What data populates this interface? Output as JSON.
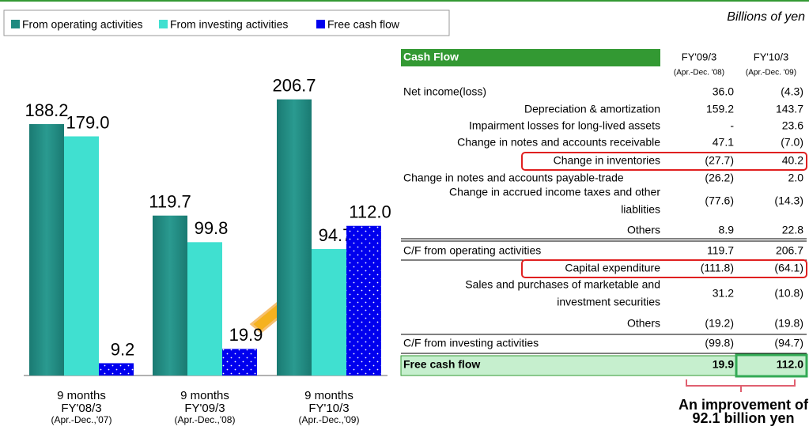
{
  "chart_data": {
    "type": "bar",
    "categories": [
      [
        "9 months",
        "FY'08/3",
        "(Apr.-Dec.,'07)"
      ],
      [
        "9 months",
        "FY'09/3",
        "(Apr.-Dec.,'08)"
      ],
      [
        "9 months",
        "FY'10/3",
        "(Apr.-Dec.,'09)"
      ]
    ],
    "series": [
      {
        "name": "From operating activities",
        "color": "#1f8a80",
        "values": [
          188.2,
          119.7,
          206.7
        ],
        "value_labels": [
          "188.2",
          "119.7",
          "206.7"
        ]
      },
      {
        "name": "From investing activities",
        "color": "#40e0d0",
        "values": [
          179.0,
          99.8,
          94.7
        ],
        "value_labels": [
          "179.0",
          "99.8",
          "94.7"
        ]
      },
      {
        "name": "Free cash flow",
        "color": "#0000ee",
        "values": [
          9.2,
          19.9,
          112.0
        ],
        "value_labels": [
          "9.2",
          "19.9",
          "112.0"
        ]
      }
    ]
  },
  "unit": "Billions of yen",
  "table": {
    "title": "Cash Flow",
    "columns": [
      [
        "FY'09/3",
        "(Apr.-Dec. '08)"
      ],
      [
        "FY'10/3",
        "(Apr.-Dec. '09)"
      ]
    ],
    "rows": [
      {
        "label": "Net income(loss)",
        "values": [
          "36.0",
          "(4.3)"
        ]
      },
      {
        "label": "Depreciation & amortization",
        "values": [
          "159.2",
          "143.7"
        ]
      },
      {
        "label": "Impairment losses for long-lived assets",
        "values": [
          "-",
          "23.6"
        ]
      },
      {
        "label": "Change in notes and accounts receivable",
        "values": [
          "47.1",
          "(7.0)"
        ]
      },
      {
        "label": "Change in inventories",
        "values": [
          "(27.7)",
          "40.2"
        ]
      },
      {
        "label": "Change in notes and accounts payable-trade",
        "values": [
          "(26.2)",
          "2.0"
        ]
      },
      {
        "label": [
          "Change in accrued income taxes and other",
          "liablities"
        ],
        "values": [
          "(77.6)",
          "(14.3)"
        ]
      },
      {
        "label": "Others",
        "values": [
          "8.9",
          "22.8"
        ]
      },
      {
        "label": "C/F from operating activities",
        "values": [
          "119.7",
          "206.7"
        ]
      },
      {
        "label": "Capital expenditure",
        "values": [
          "(111.8)",
          "(64.1)"
        ]
      },
      {
        "label": [
          "Sales and purchases of marketable and",
          "investment securities"
        ],
        "values": [
          "31.2",
          "(10.8)"
        ]
      },
      {
        "label": "Others",
        "values": [
          "(19.2)",
          "(19.8)"
        ]
      },
      {
        "label": "C/F from investing activities",
        "values": [
          "(99.8)",
          "(94.7)"
        ]
      },
      {
        "label": "Free cash flow",
        "values": [
          "19.9",
          "112.0"
        ]
      }
    ]
  },
  "annotation": [
    "An improvement of",
    "92.1 billion yen"
  ]
}
